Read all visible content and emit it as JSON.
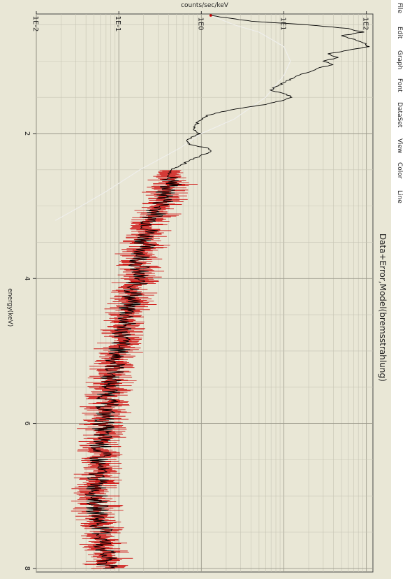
{
  "menu": [
    "File",
    "Edit",
    "Graph",
    "Font",
    "DataSet",
    "View",
    "Color",
    "Line"
  ],
  "chart_data": {
    "type": "line",
    "title": "Data+Error,Model(bremsstrahlung)",
    "xlabel": "energy(keV)",
    "ylabel": "counts/sec/keV",
    "xscale": "linear",
    "yscale": "log",
    "xlim": [
      0.35,
      8.05
    ],
    "ylim": [
      0.01,
      120
    ],
    "xticks": [
      2,
      4,
      6,
      8
    ],
    "xtick_labels": [
      "2",
      "4",
      "6",
      "8"
    ],
    "yticks": [
      0.01,
      0.1,
      1,
      10,
      100
    ],
    "ytick_labels": [
      "1E-2",
      "1E-1",
      "1E0",
      "1E1",
      "1E2"
    ],
    "grid": true,
    "series": [
      {
        "name": "Data",
        "color": "#000000",
        "error_color": "#cc0000",
        "x": [
          0.37,
          0.4,
          0.45,
          0.5,
          0.55,
          0.6,
          0.65,
          0.7,
          0.75,
          0.8,
          0.85,
          0.9,
          0.95,
          1.0,
          1.05,
          1.1,
          1.15,
          1.2,
          1.25,
          1.3,
          1.35,
          1.4,
          1.45,
          1.5,
          1.55,
          1.6,
          1.65,
          1.7,
          1.75,
          1.8,
          1.85,
          1.9,
          1.95,
          2.0,
          2.05,
          2.1,
          2.15,
          2.2,
          2.25,
          2.3,
          2.35,
          2.4,
          2.45,
          2.5,
          2.6,
          2.7,
          2.8,
          2.9,
          3.0,
          3.1,
          3.2,
          3.3,
          3.4,
          3.5,
          3.6,
          3.7,
          3.8,
          3.9,
          4.0,
          4.1,
          4.2,
          4.3,
          4.4,
          4.5,
          4.6,
          4.7,
          4.8,
          4.9,
          5.0,
          5.1,
          5.2,
          5.3,
          5.4,
          5.5,
          5.6,
          5.7,
          5.8,
          5.9,
          6.0,
          6.1,
          6.2,
          6.3,
          6.4,
          6.5,
          6.6,
          6.7,
          6.8,
          6.9,
          7.0,
          7.1,
          7.2,
          7.3,
          7.4,
          7.5,
          7.6,
          7.7,
          7.8,
          7.9,
          8.0
        ],
        "y": [
          1.3,
          2.0,
          4.0,
          20,
          60,
          90,
          50,
          70,
          95,
          105,
          60,
          35,
          45,
          30,
          40,
          25,
          20,
          15,
          12,
          10,
          8,
          7,
          10,
          13,
          9,
          6,
          3,
          1.8,
          1.2,
          1.0,
          0.9,
          0.85,
          0.8,
          0.95,
          0.75,
          0.65,
          0.7,
          1.2,
          1.3,
          1.0,
          0.8,
          0.65,
          0.55,
          0.42,
          0.4,
          0.45,
          0.35,
          0.38,
          0.32,
          0.28,
          0.25,
          0.24,
          0.22,
          0.21,
          0.2,
          0.19,
          0.18,
          0.17,
          0.17,
          0.16,
          0.15,
          0.14,
          0.13,
          0.13,
          0.12,
          0.115,
          0.11,
          0.105,
          0.1,
          0.095,
          0.09,
          0.085,
          0.08,
          0.078,
          0.075,
          0.072,
          0.07,
          0.068,
          0.066,
          0.064,
          0.062,
          0.06,
          0.059,
          0.058,
          0.057,
          0.056,
          0.055,
          0.055,
          0.054,
          0.054,
          0.055,
          0.057,
          0.06,
          0.062,
          0.064,
          0.066,
          0.068,
          0.07,
          0.07
        ]
      },
      {
        "name": "Model(bremsstrahlung)",
        "color": "#f0f0f0",
        "x": [
          0.37,
          0.5,
          0.6,
          0.8,
          1.0,
          1.2,
          1.5,
          1.8,
          2.0,
          2.2,
          2.5,
          2.8,
          3.0,
          3.2
        ],
        "y": [
          1.3,
          2.5,
          5,
          10,
          12,
          10,
          6,
          2.5,
          1.0,
          0.55,
          0.18,
          0.07,
          0.035,
          0.017
        ]
      }
    ]
  }
}
